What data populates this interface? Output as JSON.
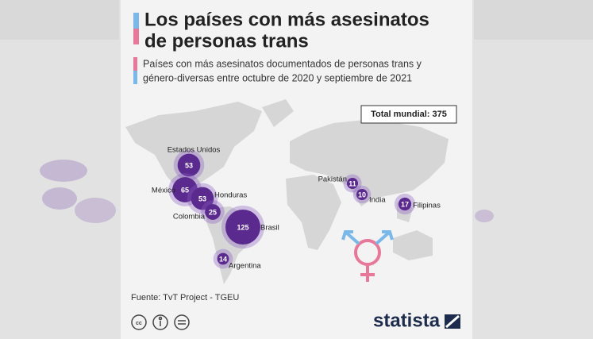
{
  "header": {
    "title": [
      "Los países con más asesinatos",
      "de personas trans"
    ],
    "subtitle": [
      "Países con más asesinatos documentados de personas trans y",
      "género-diversas entre octubre de 2020 y septiembre de 2021"
    ]
  },
  "total": "Total mundial: 375",
  "countries": [
    {
      "name": "Estados Unidos",
      "value": 53
    },
    {
      "name": "México",
      "value": 65
    },
    {
      "name": "Honduras",
      "value": 53
    },
    {
      "name": "Colombia",
      "value": 25
    },
    {
      "name": "Brasil",
      "value": 125
    },
    {
      "name": "Argentina",
      "value": 14
    },
    {
      "name": "Pakistán",
      "value": 11
    },
    {
      "name": "India",
      "value": 10
    },
    {
      "name": "Filipinas",
      "value": 17
    }
  ],
  "footer": {
    "source": "Fuente: TvT Project - TGEU",
    "brand": "statista"
  }
}
